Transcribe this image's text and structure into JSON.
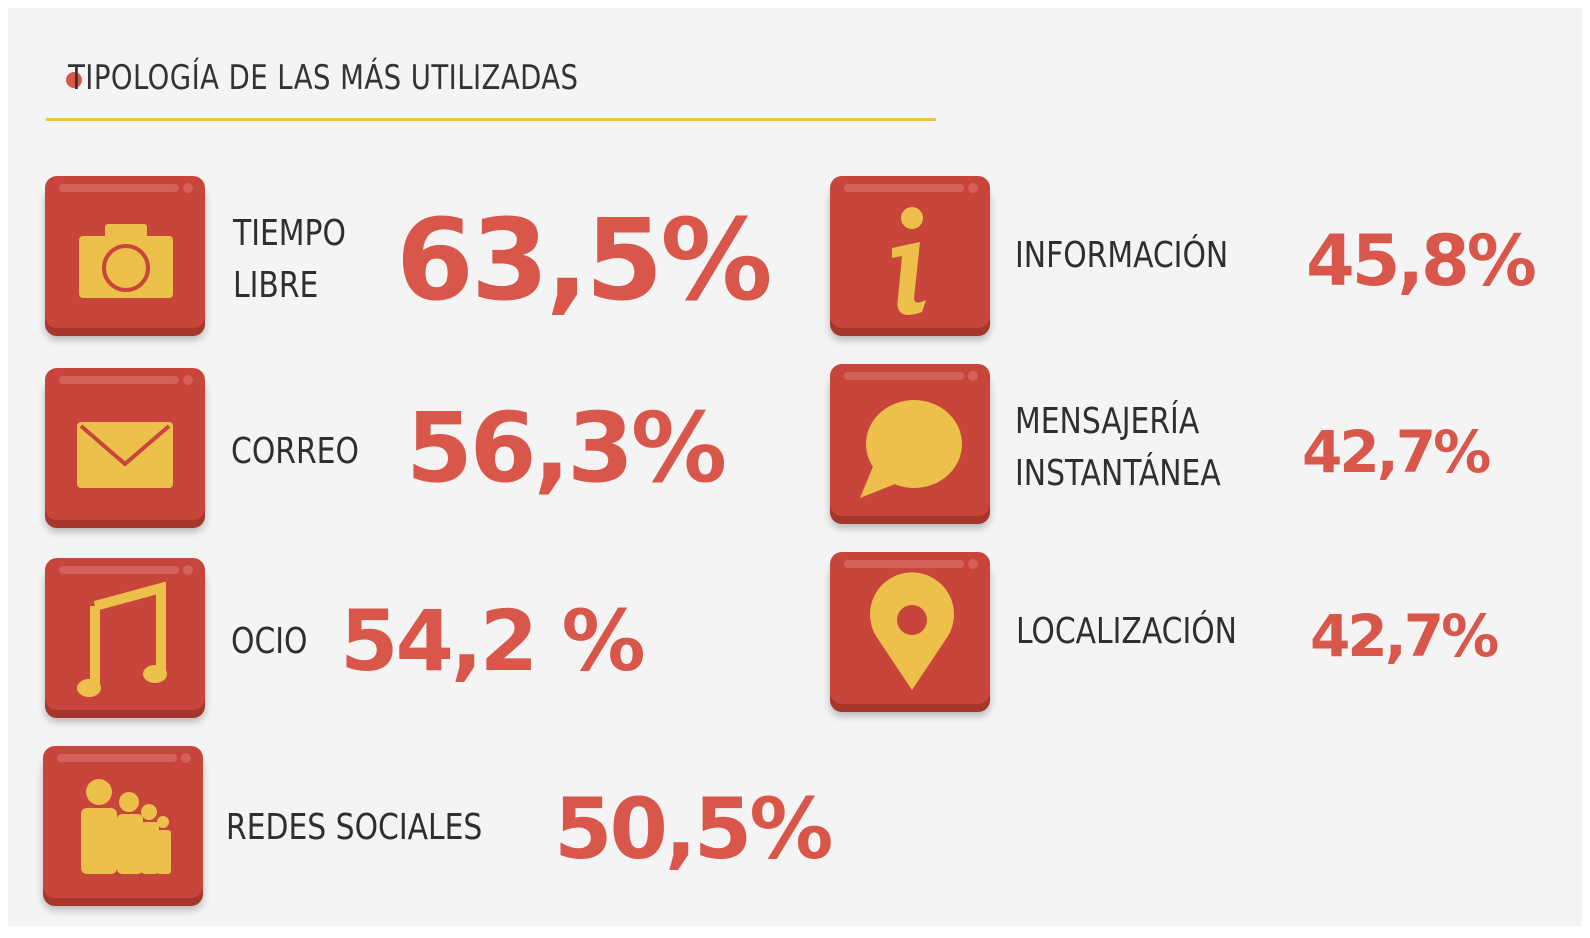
{
  "header": {
    "title": "TIPOLOGÍA DE LAS MÁS UTILIZADAS"
  },
  "items": [
    {
      "label": [
        "TIEMPO",
        "LIBRE"
      ],
      "value": "63,5%"
    },
    {
      "label": [
        "CORREO"
      ],
      "value": "56,3%"
    },
    {
      "label": [
        "OCIO"
      ],
      "value": "54,2 %"
    },
    {
      "label": [
        "REDES SOCIALES"
      ],
      "value": "50,5%"
    },
    {
      "label": [
        "INFORMACIÓN"
      ],
      "value": "45,8%"
    },
    {
      "label": [
        "MENSAJERÍA",
        "INSTANTÁNEA"
      ],
      "value": "42,7%"
    },
    {
      "label": [
        "LOCALIZACIÓN"
      ],
      "value": "42,7%"
    }
  ]
}
